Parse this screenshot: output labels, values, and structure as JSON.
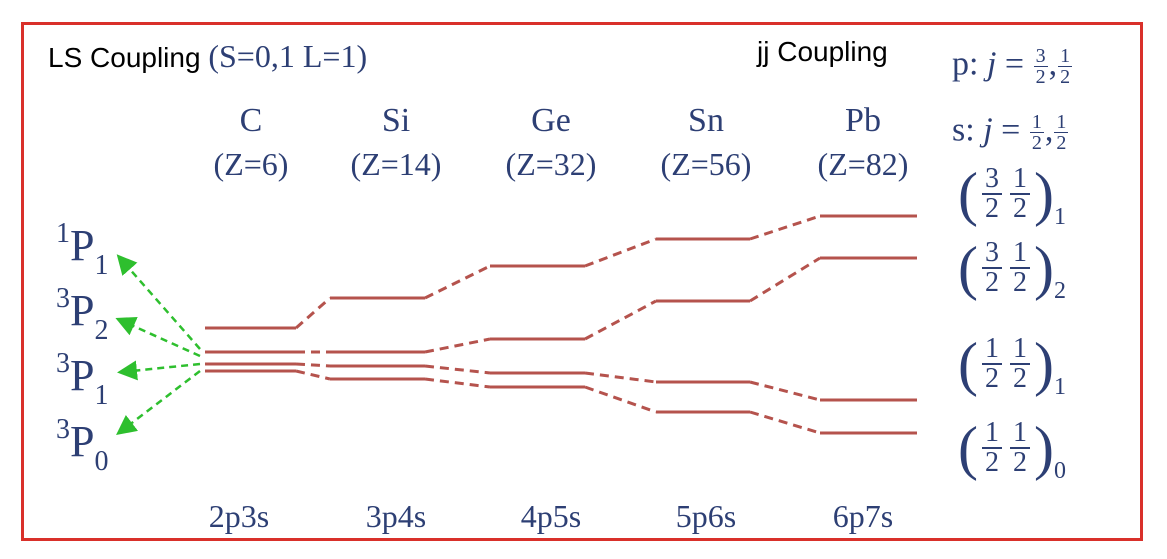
{
  "titles": {
    "ls": "LS Coupling",
    "ls_params": "(S=0,1 L=1)",
    "jj": "jj Coupling"
  },
  "elements": [
    {
      "symbol": "C",
      "z": "(Z=6)",
      "config": "2p3s"
    },
    {
      "symbol": "Si",
      "z": "(Z=14)",
      "config": "3p4s"
    },
    {
      "symbol": "Ge",
      "z": "(Z=32)",
      "config": "4p5s"
    },
    {
      "symbol": "Sn",
      "z": "(Z=56)",
      "config": "5p6s"
    },
    {
      "symbol": "Pb",
      "z": "(Z=82)",
      "config": "6p7s"
    }
  ],
  "ls_terms": [
    {
      "mult": "1",
      "letter": "P",
      "j": "1"
    },
    {
      "mult": "3",
      "letter": "P",
      "j": "2"
    },
    {
      "mult": "3",
      "letter": "P",
      "j": "1"
    },
    {
      "mult": "3",
      "letter": "P",
      "j": "0"
    }
  ],
  "jj_rules": {
    "p_label": "p:",
    "s_label": "s:",
    "j": "j",
    "eq": "=",
    "p_values": [
      {
        "num": "3",
        "den": "2"
      },
      {
        "num": "1",
        "den": "2"
      }
    ],
    "s_values": [
      {
        "num": "1",
        "den": "2"
      },
      {
        "num": "1",
        "den": "2"
      }
    ]
  },
  "jj_states": [
    {
      "j1": {
        "num": "3",
        "den": "2"
      },
      "j2": {
        "num": "1",
        "den": "2"
      },
      "J": "1"
    },
    {
      "j1": {
        "num": "3",
        "den": "2"
      },
      "j2": {
        "num": "1",
        "den": "2"
      },
      "J": "2"
    },
    {
      "j1": {
        "num": "1",
        "den": "2"
      },
      "j2": {
        "num": "1",
        "den": "2"
      },
      "J": "1"
    },
    {
      "j1": {
        "num": "1",
        "den": "2"
      },
      "j2": {
        "num": "1",
        "den": "2"
      },
      "J": "0"
    }
  ],
  "colors": {
    "frame": "#d9302a",
    "level": "#b5534d",
    "arrow": "#2ebf2e",
    "text": "#2d3f74"
  },
  "levels_note": "relative energy levels per element, 4 levels each (top to bottom)",
  "level_data": [
    [
      0.0,
      0.0,
      0.0,
      0.0
    ],
    [
      0.0,
      0.0,
      0.0,
      0.0
    ],
    [
      0.0,
      0.0,
      0.0,
      0.0
    ],
    [
      0.0,
      0.0,
      0.0,
      0.0
    ],
    [
      0.0,
      0.0,
      0.0,
      0.0
    ]
  ]
}
